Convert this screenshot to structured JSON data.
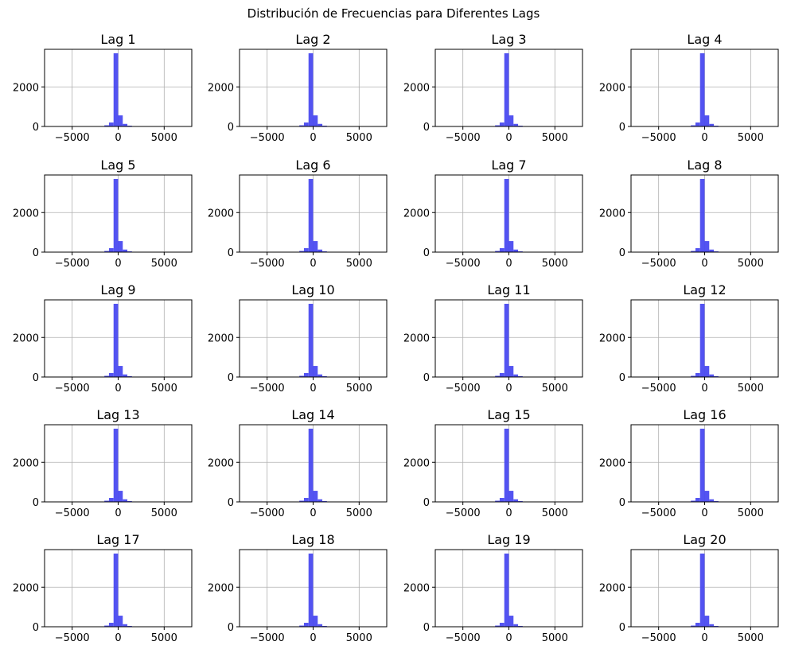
{
  "figure": {
    "title": "Distribución de Frecuencias para Diferentes Lags"
  },
  "colors": {
    "bar": "#4a4af0",
    "grid": "#b0b0b0",
    "axis": "#000000"
  },
  "chart_data": {
    "type": "bar",
    "layout": "5x4 grid of histograms",
    "xlim": [
      -8000,
      8000
    ],
    "ylim": [
      0,
      3900
    ],
    "xticks": [
      -5000,
      0,
      5000
    ],
    "yticks": [
      0,
      2000
    ],
    "grid": true,
    "bin_edges": [
      -8000,
      -7500,
      -7000,
      -6500,
      -6000,
      -5500,
      -5000,
      -4500,
      -4000,
      -3500,
      -3000,
      -2500,
      -2000,
      -1500,
      -1000,
      -500,
      0,
      500,
      1000,
      1500,
      2000,
      2500,
      3000,
      3500,
      4000,
      4500,
      5000,
      5500,
      6000,
      6500,
      7000,
      7500,
      8000
    ],
    "panels": [
      {
        "title": "Lag 1",
        "counts": [
          0,
          0,
          0,
          0,
          0,
          0,
          0,
          0,
          0,
          0,
          2,
          8,
          20,
          60,
          200,
          3700,
          560,
          130,
          40,
          15,
          5,
          2,
          1,
          0,
          0,
          0,
          0,
          0,
          0,
          0,
          0,
          0
        ]
      },
      {
        "title": "Lag 2",
        "counts": [
          0,
          0,
          0,
          0,
          0,
          0,
          0,
          0,
          0,
          0,
          2,
          8,
          20,
          60,
          200,
          3700,
          560,
          130,
          40,
          15,
          5,
          2,
          1,
          0,
          0,
          0,
          0,
          0,
          0,
          0,
          0,
          0
        ]
      },
      {
        "title": "Lag 3",
        "counts": [
          0,
          0,
          0,
          0,
          0,
          0,
          0,
          0,
          0,
          0,
          2,
          8,
          20,
          60,
          200,
          3700,
          560,
          130,
          40,
          15,
          5,
          2,
          1,
          0,
          0,
          0,
          0,
          0,
          0,
          0,
          0,
          0
        ]
      },
      {
        "title": "Lag 4",
        "counts": [
          0,
          0,
          0,
          0,
          0,
          0,
          0,
          0,
          0,
          0,
          2,
          8,
          20,
          60,
          200,
          3700,
          560,
          130,
          40,
          15,
          5,
          2,
          1,
          0,
          0,
          0,
          0,
          0,
          0,
          0,
          0,
          0
        ]
      },
      {
        "title": "Lag 5",
        "counts": [
          0,
          0,
          0,
          0,
          0,
          0,
          0,
          0,
          0,
          0,
          2,
          8,
          20,
          60,
          200,
          3700,
          560,
          130,
          40,
          15,
          5,
          2,
          1,
          0,
          0,
          0,
          0,
          0,
          0,
          0,
          0,
          0
        ]
      },
      {
        "title": "Lag 6",
        "counts": [
          0,
          0,
          0,
          0,
          0,
          0,
          0,
          0,
          0,
          0,
          2,
          8,
          20,
          60,
          200,
          3700,
          560,
          130,
          40,
          15,
          5,
          2,
          1,
          0,
          0,
          0,
          0,
          0,
          0,
          0,
          0,
          0
        ]
      },
      {
        "title": "Lag 7",
        "counts": [
          0,
          0,
          0,
          0,
          0,
          0,
          0,
          0,
          0,
          0,
          2,
          8,
          20,
          60,
          200,
          3700,
          560,
          130,
          40,
          15,
          5,
          2,
          1,
          0,
          0,
          0,
          0,
          0,
          0,
          0,
          0,
          0
        ]
      },
      {
        "title": "Lag 8",
        "counts": [
          0,
          0,
          0,
          0,
          0,
          0,
          0,
          0,
          0,
          0,
          2,
          8,
          20,
          60,
          200,
          3700,
          560,
          130,
          40,
          15,
          5,
          2,
          1,
          0,
          0,
          0,
          0,
          0,
          0,
          0,
          0,
          0
        ]
      },
      {
        "title": "Lag 9",
        "counts": [
          0,
          0,
          0,
          0,
          0,
          0,
          0,
          0,
          0,
          0,
          2,
          8,
          20,
          60,
          200,
          3700,
          560,
          130,
          40,
          15,
          5,
          2,
          1,
          0,
          0,
          0,
          0,
          0,
          0,
          0,
          0,
          0
        ]
      },
      {
        "title": "Lag 10",
        "counts": [
          0,
          0,
          0,
          0,
          0,
          0,
          0,
          0,
          0,
          0,
          2,
          8,
          20,
          60,
          200,
          3700,
          560,
          130,
          40,
          15,
          5,
          2,
          1,
          0,
          0,
          0,
          0,
          0,
          0,
          0,
          0,
          0
        ]
      },
      {
        "title": "Lag 11",
        "counts": [
          0,
          0,
          0,
          0,
          0,
          0,
          0,
          0,
          0,
          0,
          2,
          8,
          20,
          60,
          200,
          3700,
          560,
          130,
          40,
          15,
          5,
          2,
          1,
          0,
          0,
          0,
          0,
          0,
          0,
          0,
          0,
          0
        ]
      },
      {
        "title": "Lag 12",
        "counts": [
          0,
          0,
          0,
          0,
          0,
          0,
          0,
          0,
          0,
          0,
          2,
          8,
          20,
          60,
          200,
          3700,
          560,
          130,
          40,
          15,
          5,
          2,
          1,
          0,
          0,
          0,
          0,
          0,
          0,
          0,
          0,
          0
        ]
      },
      {
        "title": "Lag 13",
        "counts": [
          0,
          0,
          0,
          0,
          0,
          0,
          0,
          0,
          0,
          0,
          2,
          8,
          20,
          60,
          200,
          3700,
          560,
          130,
          40,
          15,
          5,
          2,
          1,
          0,
          0,
          0,
          0,
          0,
          0,
          0,
          0,
          0
        ]
      },
      {
        "title": "Lag 14",
        "counts": [
          0,
          0,
          0,
          0,
          0,
          0,
          0,
          0,
          0,
          0,
          2,
          8,
          20,
          60,
          200,
          3700,
          560,
          130,
          40,
          15,
          5,
          2,
          1,
          0,
          0,
          0,
          0,
          0,
          0,
          0,
          0,
          0
        ]
      },
      {
        "title": "Lag 15",
        "counts": [
          0,
          0,
          0,
          0,
          0,
          0,
          0,
          0,
          0,
          0,
          2,
          8,
          20,
          60,
          200,
          3700,
          560,
          130,
          40,
          15,
          5,
          2,
          1,
          0,
          0,
          0,
          0,
          0,
          0,
          0,
          0,
          0
        ]
      },
      {
        "title": "Lag 16",
        "counts": [
          0,
          0,
          0,
          0,
          0,
          0,
          0,
          0,
          0,
          0,
          2,
          8,
          20,
          60,
          200,
          3700,
          560,
          130,
          40,
          15,
          5,
          2,
          1,
          0,
          0,
          0,
          0,
          0,
          0,
          0,
          0,
          0
        ]
      },
      {
        "title": "Lag 17",
        "counts": [
          0,
          0,
          0,
          0,
          0,
          0,
          0,
          0,
          0,
          0,
          2,
          8,
          20,
          60,
          200,
          3700,
          560,
          130,
          40,
          15,
          5,
          2,
          1,
          0,
          0,
          0,
          0,
          0,
          0,
          0,
          0,
          0
        ]
      },
      {
        "title": "Lag 18",
        "counts": [
          0,
          0,
          0,
          0,
          0,
          0,
          0,
          0,
          0,
          0,
          2,
          8,
          20,
          60,
          200,
          3700,
          560,
          130,
          40,
          15,
          5,
          2,
          1,
          0,
          0,
          0,
          0,
          0,
          0,
          0,
          0,
          0
        ]
      },
      {
        "title": "Lag 19",
        "counts": [
          0,
          0,
          0,
          0,
          0,
          0,
          0,
          0,
          0,
          0,
          2,
          8,
          20,
          60,
          200,
          3700,
          560,
          130,
          40,
          15,
          5,
          2,
          1,
          0,
          0,
          0,
          0,
          0,
          0,
          0,
          0,
          0
        ]
      },
      {
        "title": "Lag 20",
        "counts": [
          0,
          0,
          0,
          0,
          0,
          0,
          0,
          0,
          0,
          0,
          2,
          8,
          20,
          60,
          200,
          3700,
          560,
          130,
          40,
          15,
          5,
          2,
          1,
          0,
          0,
          0,
          0,
          0,
          0,
          0,
          0,
          0
        ]
      }
    ]
  }
}
